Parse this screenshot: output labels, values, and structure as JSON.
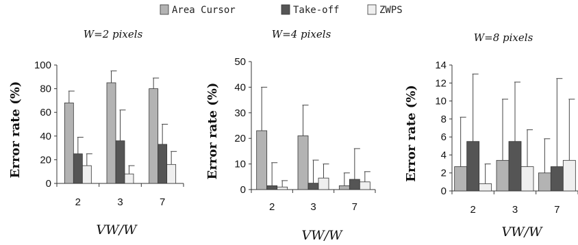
{
  "legend": [
    {
      "name": "Area Cursor",
      "color": "#b3b3b3"
    },
    {
      "name": "Take-off",
      "color": "#555555"
    },
    {
      "name": "ZWPS",
      "color": "#efefef"
    }
  ],
  "chart_data": [
    {
      "type": "bar",
      "title": "W=2 pixels",
      "ylabel": "Error rate (%)",
      "xlabel": "VW/W",
      "categories": [
        "2",
        "3",
        "7"
      ],
      "ylim": [
        0,
        100
      ],
      "yticks": [
        0,
        20,
        40,
        60,
        80,
        100
      ],
      "series": [
        {
          "name": "Area Cursor",
          "values": [
            68,
            85,
            80
          ],
          "error": [
            10,
            10,
            9
          ]
        },
        {
          "name": "Take-off",
          "values": [
            25,
            36,
            33
          ],
          "error": [
            14,
            26,
            17
          ]
        },
        {
          "name": "ZWPS",
          "values": [
            15,
            8,
            16
          ],
          "error": [
            10,
            7,
            11
          ]
        }
      ]
    },
    {
      "type": "bar",
      "title": "W=4 pixels",
      "ylabel": "Error rate (%)",
      "xlabel": "VW/W",
      "categories": [
        "2",
        "3",
        "7"
      ],
      "ylim": [
        0,
        50
      ],
      "yticks": [
        0,
        10,
        20,
        30,
        40,
        50
      ],
      "series": [
        {
          "name": "Area Cursor",
          "values": [
            23,
            21,
            1.5
          ],
          "error": [
            17,
            12,
            5
          ]
        },
        {
          "name": "Take-off",
          "values": [
            1.5,
            2.5,
            4
          ],
          "error": [
            9,
            9,
            12
          ]
        },
        {
          "name": "ZWPS",
          "values": [
            1,
            4.5,
            3
          ],
          "error": [
            2.5,
            5.5,
            4
          ]
        }
      ]
    },
    {
      "type": "bar",
      "title": "W=8 pixels",
      "ylabel": "Error rate (%)",
      "xlabel": "VW/W",
      "categories": [
        "2",
        "3",
        "7"
      ],
      "ylim": [
        0,
        14
      ],
      "yticks": [
        0,
        2,
        4,
        6,
        8,
        10,
        12,
        14
      ],
      "series": [
        {
          "name": "Area Cursor",
          "values": [
            2.7,
            3.4,
            2.0
          ],
          "error": [
            5.5,
            6.8,
            3.8
          ]
        },
        {
          "name": "Take-off",
          "values": [
            5.5,
            5.5,
            2.7
          ],
          "error": [
            7.5,
            6.6,
            9.8
          ]
        },
        {
          "name": "ZWPS",
          "values": [
            0.8,
            2.7,
            3.4
          ],
          "error": [
            2.2,
            4.1,
            6.8
          ]
        }
      ]
    }
  ]
}
